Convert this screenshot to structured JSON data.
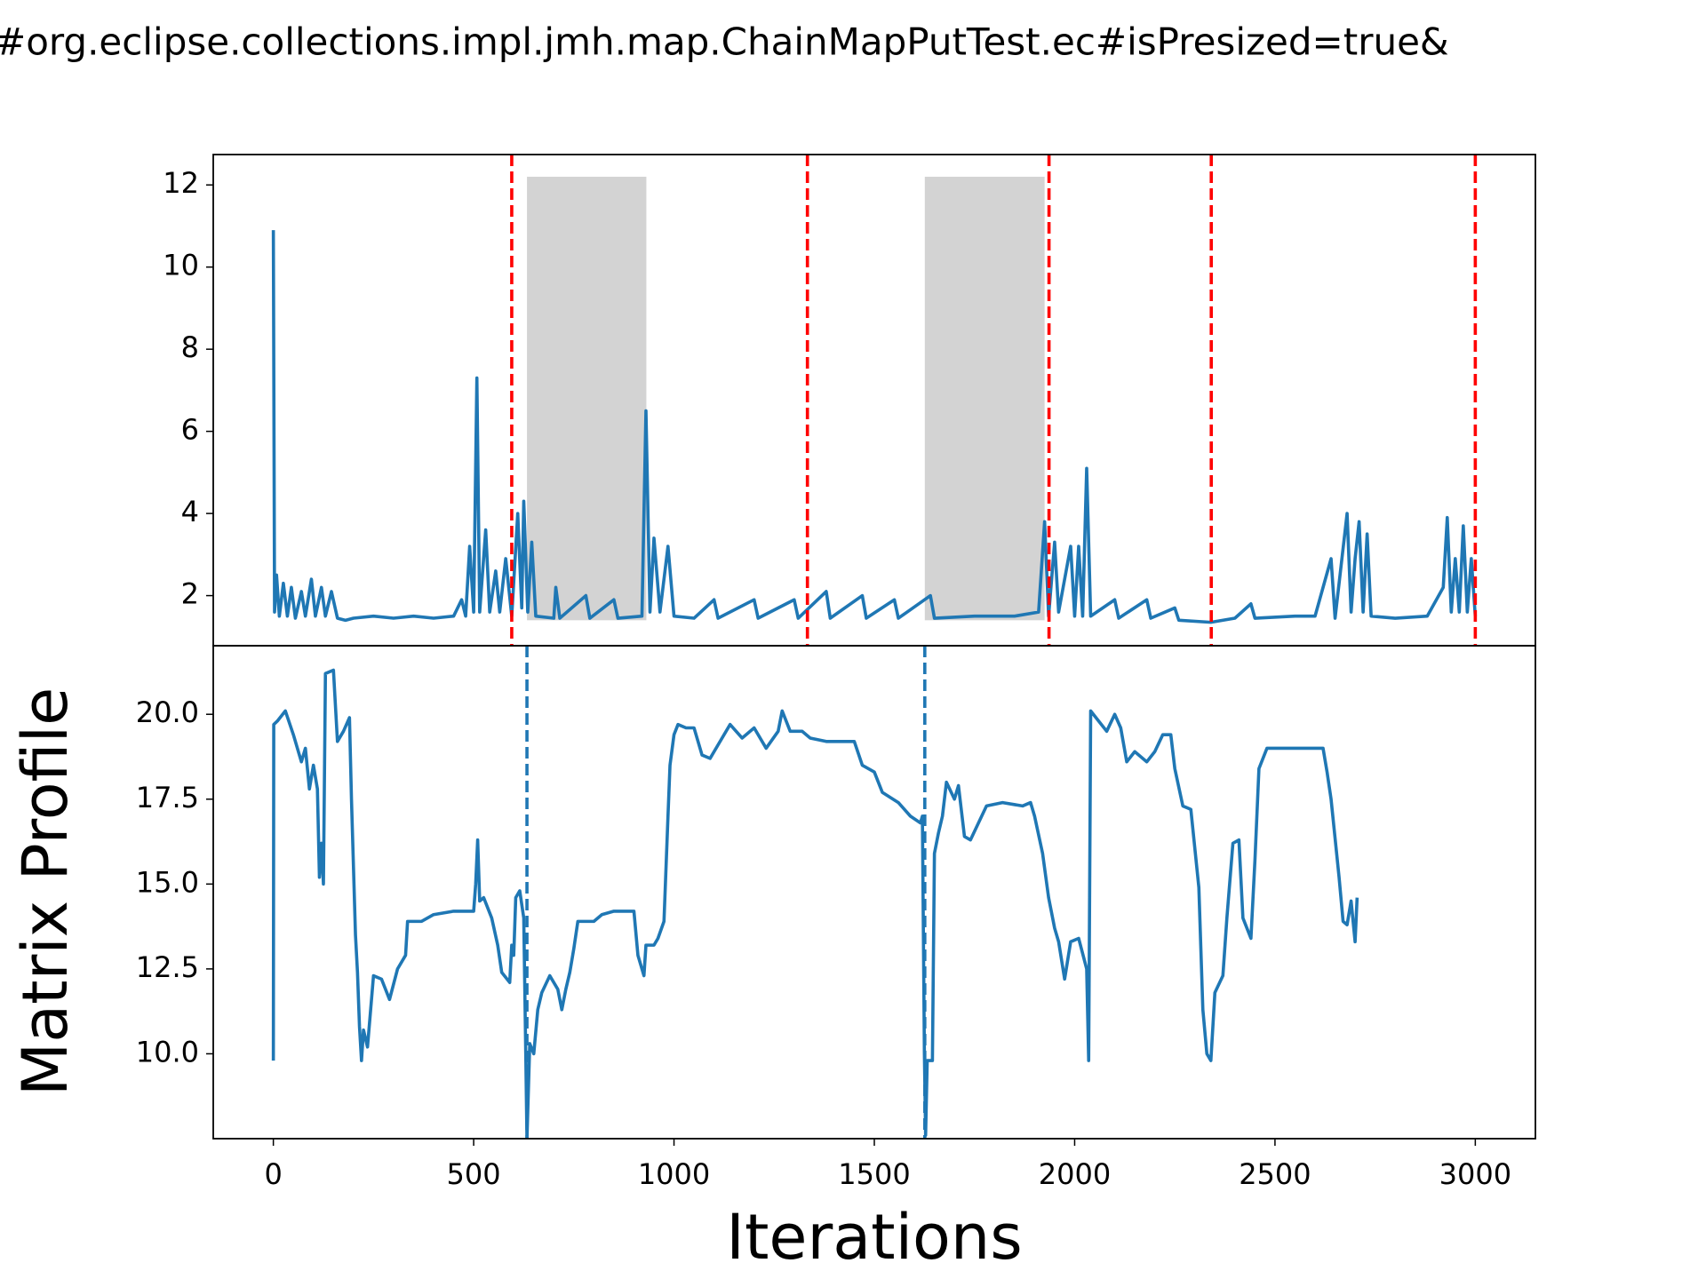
{
  "title": "#org.eclipse.collections.impl.jmh.map.ChainMapPutTest.ec#isPresized=true&",
  "xlabel": "Iterations",
  "ylabel": "Matrix Profile",
  "chart_data": [
    {
      "type": "line",
      "x": [
        0,
        3,
        8,
        15,
        25,
        35,
        45,
        55,
        70,
        80,
        95,
        105,
        120,
        130,
        145,
        160,
        180,
        200,
        250,
        300,
        350,
        400,
        450,
        470,
        480,
        490,
        500,
        508,
        515,
        530,
        540,
        555,
        565,
        580,
        595,
        610,
        620,
        625,
        635,
        645,
        655,
        700,
        705,
        715,
        780,
        790,
        850,
        860,
        920,
        930,
        940,
        950,
        965,
        985,
        1000,
        1050,
        1100,
        1110,
        1200,
        1210,
        1300,
        1310,
        1380,
        1390,
        1470,
        1480,
        1550,
        1560,
        1640,
        1650,
        1750,
        1850,
        1910,
        1925,
        1935,
        1950,
        1960,
        1990,
        2000,
        2010,
        2020,
        2030,
        2040,
        2100,
        2110,
        2180,
        2190,
        2250,
        2260,
        2340,
        2400,
        2440,
        2450,
        2550,
        2600,
        2640,
        2650,
        2680,
        2690,
        2700,
        2710,
        2720,
        2730,
        2740,
        2800,
        2880,
        2920,
        2930,
        2940,
        2950,
        2960,
        2970,
        2980,
        2990,
        3000
      ],
      "series": [
        {
          "color": "#1f77b4",
          "values": [
            10.9,
            1.6,
            2.5,
            1.5,
            2.3,
            1.5,
            2.2,
            1.45,
            2.1,
            1.5,
            2.4,
            1.5,
            2.2,
            1.5,
            2.1,
            1.45,
            1.4,
            1.45,
            1.5,
            1.45,
            1.5,
            1.45,
            1.5,
            1.9,
            1.5,
            3.2,
            1.6,
            7.3,
            1.6,
            3.6,
            1.6,
            2.6,
            1.6,
            2.9,
            1.5,
            4.0,
            1.7,
            4.3,
            1.6,
            3.3,
            1.5,
            1.45,
            2.2,
            1.45,
            2.0,
            1.45,
            1.9,
            1.45,
            1.5,
            6.5,
            1.6,
            3.4,
            1.6,
            3.2,
            1.5,
            1.45,
            1.9,
            1.45,
            1.9,
            1.45,
            1.9,
            1.45,
            2.1,
            1.45,
            2.0,
            1.45,
            1.9,
            1.45,
            2.0,
            1.45,
            1.5,
            1.5,
            1.6,
            3.8,
            1.5,
            3.3,
            1.6,
            3.2,
            1.5,
            3.2,
            1.5,
            5.1,
            1.5,
            1.9,
            1.45,
            1.9,
            1.45,
            1.7,
            1.4,
            1.35,
            1.45,
            1.8,
            1.45,
            1.5,
            1.5,
            2.9,
            1.45,
            4.0,
            1.6,
            2.9,
            3.8,
            1.6,
            3.5,
            1.5,
            1.45,
            1.5,
            2.2,
            3.9,
            1.6,
            2.9,
            1.6,
            3.7,
            1.6,
            2.9,
            1.5
          ]
        }
      ],
      "xlim": [
        -150,
        3150
      ],
      "ylim": [
        0.78,
        12.74
      ],
      "yticks": [
        2,
        4,
        6,
        8,
        10,
        12
      ],
      "spans": {
        "x": [
          [
            633,
            931
          ],
          [
            1626,
            1925
          ]
        ],
        "ylim": [
          1.4,
          12.2
        ],
        "color": "#d3d3d3"
      },
      "vlines": {
        "x": [
          595,
          1333,
          1936,
          2341,
          3000
        ],
        "color": "#ff0000",
        "style": "dashed"
      }
    },
    {
      "type": "line",
      "x": [
        0,
        1,
        10,
        30,
        50,
        70,
        80,
        90,
        100,
        110,
        115,
        120,
        125,
        130,
        150,
        160,
        175,
        190,
        195,
        205,
        210,
        215,
        220,
        225,
        235,
        250,
        270,
        290,
        310,
        330,
        335,
        370,
        400,
        450,
        500,
        505,
        510,
        515,
        525,
        545,
        560,
        570,
        590,
        595,
        600,
        605,
        615,
        625,
        630,
        633,
        640,
        650,
        660,
        670,
        690,
        710,
        720,
        730,
        740,
        750,
        760,
        800,
        820,
        850,
        900,
        910,
        925,
        930,
        950,
        960,
        975,
        985,
        990,
        1000,
        1010,
        1030,
        1050,
        1070,
        1090,
        1110,
        1140,
        1170,
        1200,
        1230,
        1260,
        1270,
        1290,
        1320,
        1340,
        1380,
        1420,
        1450,
        1470,
        1500,
        1520,
        1560,
        1590,
        1615,
        1620,
        1625,
        1628,
        1632,
        1645,
        1650,
        1660,
        1670,
        1680,
        1700,
        1710,
        1725,
        1740,
        1760,
        1780,
        1820,
        1870,
        1890,
        1900,
        1920,
        1935,
        1950,
        1960,
        1975,
        1990,
        2010,
        2030,
        2035,
        2040,
        2060,
        2080,
        2100,
        2115,
        2130,
        2150,
        2180,
        2200,
        2220,
        2240,
        2250,
        2270,
        2290,
        2310,
        2320,
        2330,
        2340,
        2350,
        2370,
        2380,
        2395,
        2410,
        2420,
        2440,
        2450,
        2460,
        2480,
        2550,
        2600,
        2620,
        2630,
        2640,
        2660,
        2670,
        2680,
        2690,
        2700,
        2705
      ],
      "series": [
        {
          "color": "#1f77b4",
          "values": [
            9.8,
            19.7,
            19.8,
            20.1,
            19.4,
            18.6,
            19.0,
            17.8,
            18.5,
            17.8,
            15.2,
            16.2,
            15.0,
            21.2,
            21.3,
            19.2,
            19.5,
            19.9,
            17.5,
            13.5,
            12.4,
            10.8,
            9.8,
            10.7,
            10.2,
            12.3,
            12.2,
            11.6,
            12.5,
            12.9,
            13.9,
            13.9,
            14.1,
            14.2,
            14.2,
            15.0,
            16.3,
            14.5,
            14.6,
            14.0,
            13.2,
            12.4,
            12.1,
            13.2,
            12.9,
            14.6,
            14.8,
            14.0,
            10.0,
            7.5,
            10.3,
            10.0,
            11.3,
            11.8,
            12.3,
            11.9,
            11.3,
            11.9,
            12.4,
            13.1,
            13.9,
            13.9,
            14.1,
            14.2,
            14.2,
            12.9,
            12.3,
            13.2,
            13.2,
            13.4,
            13.9,
            17.0,
            18.5,
            19.4,
            19.7,
            19.6,
            19.6,
            18.8,
            18.7,
            19.1,
            19.7,
            19.3,
            19.6,
            19.0,
            19.5,
            20.1,
            19.5,
            19.5,
            19.3,
            19.2,
            19.2,
            19.2,
            18.5,
            18.3,
            17.7,
            17.4,
            17.0,
            16.8,
            17.0,
            10.0,
            7.6,
            9.8,
            9.8,
            15.9,
            16.5,
            17.0,
            18.0,
            17.5,
            17.9,
            16.4,
            16.3,
            16.8,
            17.3,
            17.4,
            17.3,
            17.4,
            17.0,
            15.9,
            14.6,
            13.7,
            13.3,
            12.2,
            13.3,
            13.4,
            12.5,
            9.8,
            20.1,
            19.8,
            19.5,
            20.0,
            19.6,
            18.6,
            18.9,
            18.6,
            18.9,
            19.4,
            19.4,
            18.4,
            17.3,
            17.2,
            14.9,
            11.3,
            10.0,
            9.8,
            11.8,
            12.3,
            14.0,
            16.2,
            16.3,
            14.0,
            13.4,
            15.7,
            18.4,
            19.0,
            19.0,
            19.0,
            19.0,
            18.3,
            17.5,
            15.2,
            13.9,
            13.8,
            14.5,
            13.3,
            14.6
          ]
        }
      ],
      "xlim": [
        -150,
        3150
      ],
      "ylim": [
        7.5,
        22.02
      ],
      "xticks": [
        0,
        500,
        1000,
        1500,
        2000,
        2500,
        3000
      ],
      "yticks": [
        {
          "value": 10,
          "label": "10.0"
        },
        12.5,
        {
          "value": 15,
          "label": "15.0"
        },
        17.5,
        {
          "value": 20,
          "label": "20.0"
        }
      ],
      "vlines": {
        "x": [
          633,
          1626
        ],
        "color": "#1f77b4",
        "style": "dashed"
      }
    }
  ]
}
